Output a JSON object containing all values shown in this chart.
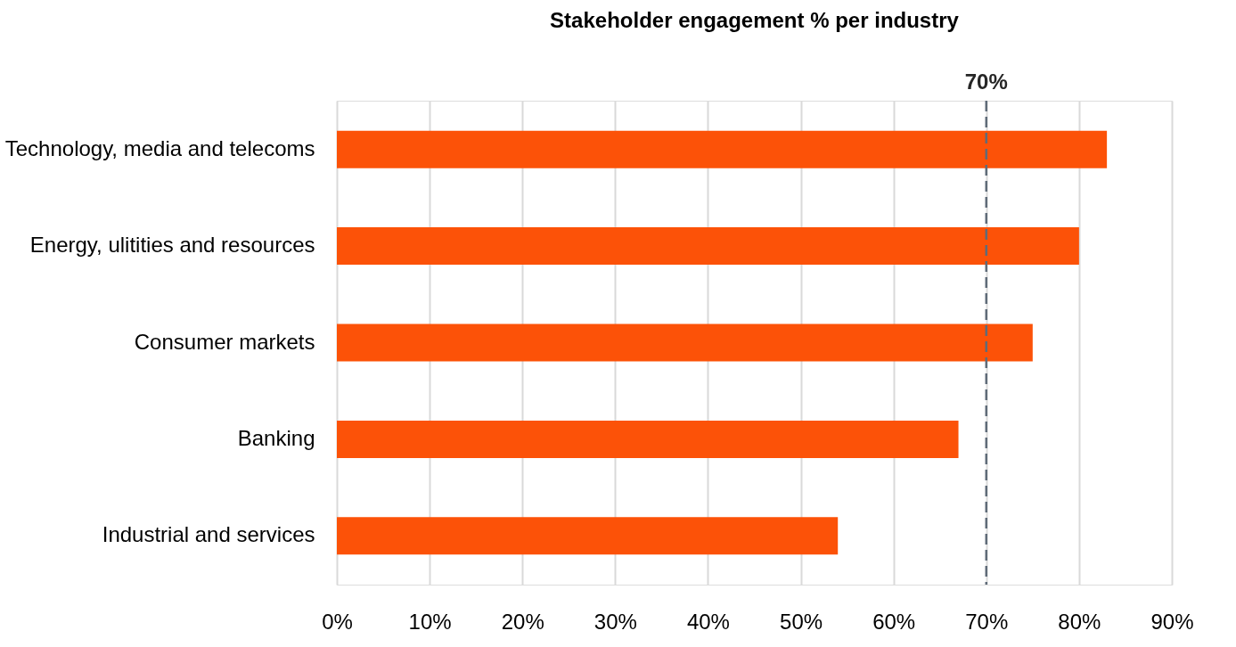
{
  "chart_data": {
    "type": "bar",
    "orientation": "horizontal",
    "title": "Stakeholder engagement % per industry",
    "categories": [
      "Technology, media and telecoms",
      "Energy, ulitities and resources",
      "Consumer markets",
      "Banking",
      "Industrial and services"
    ],
    "values": [
      83,
      80,
      75,
      67,
      54
    ],
    "color": "#fc5208",
    "xlim": [
      0,
      90
    ],
    "xticks": [
      {
        "value": 0,
        "label": "0%"
      },
      {
        "value": 10,
        "label": "10%"
      },
      {
        "value": 20,
        "label": "20%"
      },
      {
        "value": 30,
        "label": "30%"
      },
      {
        "value": 40,
        "label": "40%"
      },
      {
        "value": 50,
        "label": "50%"
      },
      {
        "value": 60,
        "label": "60%"
      },
      {
        "value": 70,
        "label": "70%"
      },
      {
        "value": 80,
        "label": "80%"
      },
      {
        "value": 90,
        "label": "90%"
      }
    ],
    "grid": "x",
    "ref_lines": [
      {
        "axis": "x",
        "value": 70,
        "label": "70%",
        "color": "#5f6b78",
        "line_style": "dashed"
      }
    ]
  }
}
